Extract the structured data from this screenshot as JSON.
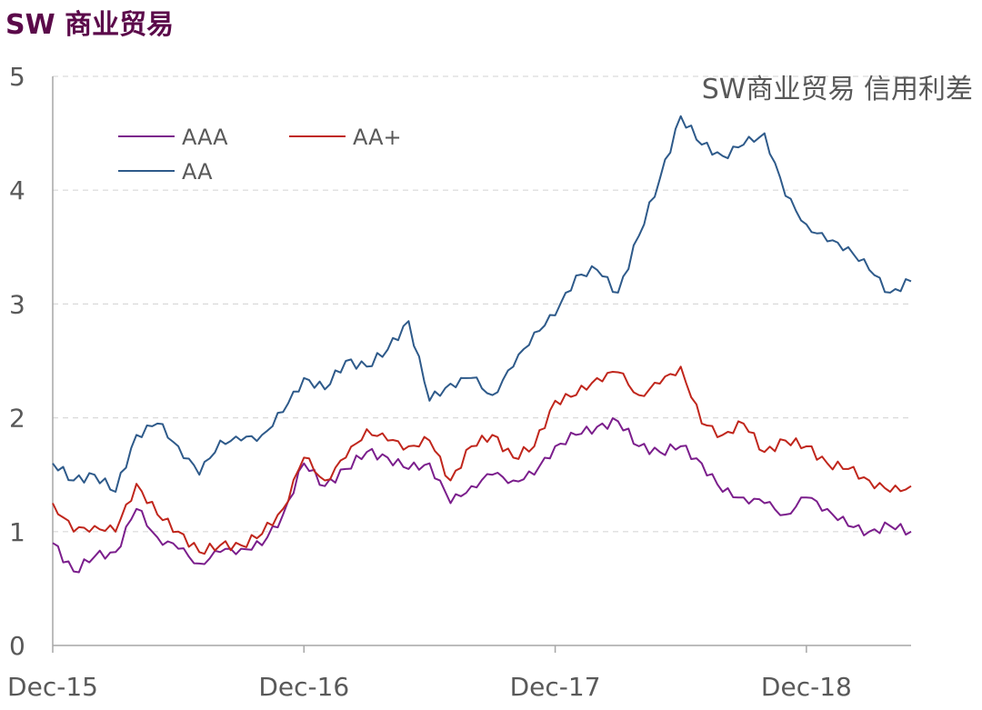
{
  "page": {
    "heading": "SW 商业贸易"
  },
  "chart_data": {
    "type": "line",
    "title": "SW商业贸易 信用利差",
    "xlabel": "",
    "ylabel": "",
    "ylim": [
      0,
      5
    ],
    "yticks": [
      "0",
      "1",
      "2",
      "3",
      "4",
      "5"
    ],
    "xticks": [
      "Dec-15",
      "Dec-16",
      "Dec-17",
      "Dec-18"
    ],
    "x_range": [
      "2015-12",
      "2019-05"
    ],
    "grid": "horizontal dashed",
    "legend_position": "upper-left",
    "series": [
      {
        "name": "AAA",
        "color": "#7b1e8c",
        "x": [
          "2015-12",
          "2016-01",
          "2016-02",
          "2016-03",
          "2016-04",
          "2016-05",
          "2016-06",
          "2016-07",
          "2016-08",
          "2016-09",
          "2016-10",
          "2016-11",
          "2016-12",
          "2017-01",
          "2017-02",
          "2017-03",
          "2017-04",
          "2017-05",
          "2017-06",
          "2017-07",
          "2017-08",
          "2017-09",
          "2017-10",
          "2017-11",
          "2017-12",
          "2018-01",
          "2018-02",
          "2018-03",
          "2018-04",
          "2018-05",
          "2018-06",
          "2018-07",
          "2018-08",
          "2018-09",
          "2018-10",
          "2018-11",
          "2018-12",
          "2019-01",
          "2019-02",
          "2019-03",
          "2019-04",
          "2019-05"
        ],
        "values": [
          0.9,
          0.65,
          0.78,
          0.82,
          1.2,
          0.95,
          0.85,
          0.72,
          0.82,
          0.85,
          0.88,
          1.15,
          1.6,
          1.4,
          1.55,
          1.7,
          1.65,
          1.55,
          1.6,
          1.25,
          1.4,
          1.5,
          1.45,
          1.5,
          1.75,
          1.85,
          1.92,
          1.97,
          1.75,
          1.7,
          1.75,
          1.6,
          1.35,
          1.3,
          1.25,
          1.15,
          1.3,
          1.2,
          1.05,
          1.0,
          1.05,
          1.0
        ]
      },
      {
        "name": "AA+",
        "color": "#c0261c",
        "x": [
          "2015-12",
          "2016-01",
          "2016-02",
          "2016-03",
          "2016-04",
          "2016-05",
          "2016-06",
          "2016-07",
          "2016-08",
          "2016-09",
          "2016-10",
          "2016-11",
          "2016-12",
          "2017-01",
          "2017-02",
          "2017-03",
          "2017-04",
          "2017-05",
          "2017-06",
          "2017-07",
          "2017-08",
          "2017-09",
          "2017-10",
          "2017-11",
          "2017-12",
          "2018-01",
          "2018-02",
          "2018-03",
          "2018-04",
          "2018-05",
          "2018-06",
          "2018-07",
          "2018-08",
          "2018-09",
          "2018-10",
          "2018-11",
          "2018-12",
          "2019-01",
          "2019-02",
          "2019-03",
          "2019-04",
          "2019-05"
        ],
        "values": [
          1.25,
          1.0,
          1.05,
          1.0,
          1.42,
          1.15,
          1.0,
          0.82,
          0.88,
          0.88,
          0.98,
          1.2,
          1.65,
          1.45,
          1.65,
          1.9,
          1.8,
          1.75,
          1.8,
          1.45,
          1.75,
          1.85,
          1.65,
          1.75,
          2.15,
          2.2,
          2.35,
          2.4,
          2.2,
          2.3,
          2.45,
          1.95,
          1.85,
          1.95,
          1.7,
          1.8,
          1.75,
          1.6,
          1.55,
          1.45,
          1.35,
          1.4
        ]
      },
      {
        "name": "AA",
        "color": "#2e5a8a",
        "x": [
          "2015-12",
          "2016-01",
          "2016-02",
          "2016-03",
          "2016-04",
          "2016-05",
          "2016-06",
          "2016-07",
          "2016-08",
          "2016-09",
          "2016-10",
          "2016-11",
          "2016-12",
          "2017-01",
          "2017-02",
          "2017-03",
          "2017-04",
          "2017-05",
          "2017-06",
          "2017-07",
          "2017-08",
          "2017-09",
          "2017-10",
          "2017-11",
          "2017-12",
          "2018-01",
          "2018-02",
          "2018-03",
          "2018-04",
          "2018-05",
          "2018-06",
          "2018-07",
          "2018-08",
          "2018-09",
          "2018-10",
          "2018-11",
          "2018-12",
          "2019-01",
          "2019-02",
          "2019-03",
          "2019-04",
          "2019-05"
        ],
        "values": [
          1.6,
          1.45,
          1.5,
          1.35,
          1.85,
          1.95,
          1.75,
          1.5,
          1.8,
          1.8,
          1.85,
          2.05,
          2.35,
          2.25,
          2.5,
          2.45,
          2.6,
          2.85,
          2.15,
          2.3,
          2.35,
          2.2,
          2.45,
          2.75,
          2.9,
          3.25,
          3.3,
          3.1,
          3.6,
          4.1,
          4.65,
          4.4,
          4.3,
          4.4,
          4.5,
          3.95,
          3.7,
          3.55,
          3.5,
          3.3,
          3.1,
          3.2
        ]
      }
    ]
  }
}
